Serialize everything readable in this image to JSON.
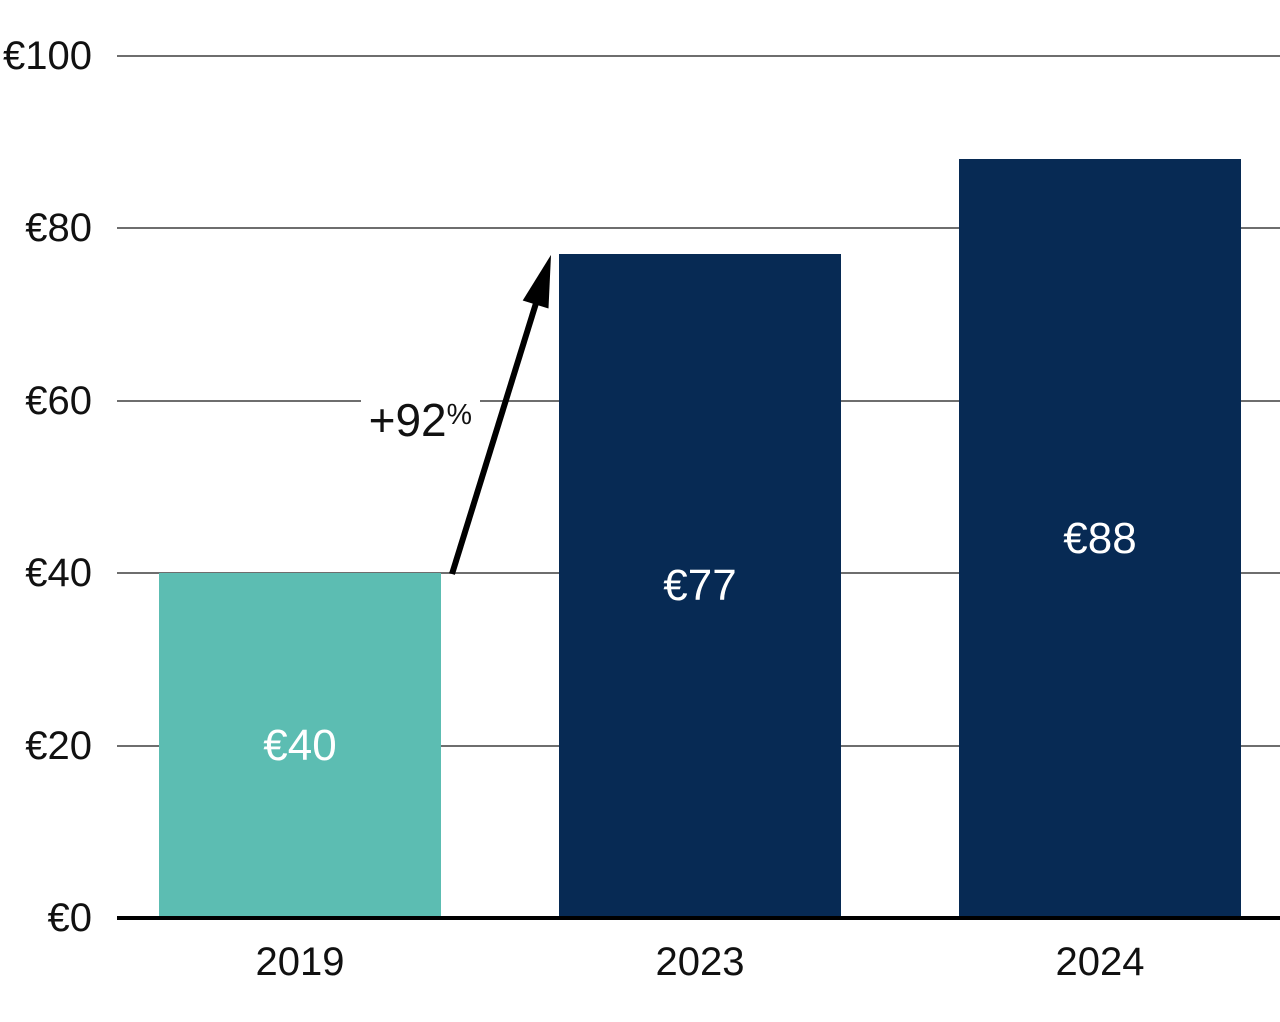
{
  "chart_data": {
    "type": "bar",
    "title": "",
    "categories": [
      "2019",
      "2023",
      "2024"
    ],
    "values": [
      40,
      77,
      88
    ],
    "bar_labels": [
      "€40",
      "€77",
      "€88"
    ],
    "bar_colors": [
      "#5cbdb2",
      "#072a54",
      "#072a54"
    ],
    "xlabel": "",
    "ylabel": "",
    "ylim": [
      0,
      100
    ],
    "y_ticks": [
      0,
      20,
      40,
      60,
      80,
      100
    ],
    "y_tick_labels": [
      "€0",
      "€20",
      "€40",
      "€60",
      "€80",
      "€100"
    ],
    "grid": "horizontal-gridlines-on",
    "legend": "none",
    "annotation": {
      "text": "+92%",
      "value_part": "+92",
      "percent_part": "%",
      "from_category": "2019",
      "to_category": "2023",
      "style": "black-arrow-up-right"
    }
  },
  "colors": {
    "background": "#ffffff",
    "teal_bar": "#5cbdb2",
    "navy_bar": "#072a54",
    "gridline": "#6e6e6e",
    "axis_line": "#000000",
    "tick_text": "#111111",
    "bar_label_text": "#ffffff",
    "annotation_text": "#000000"
  }
}
